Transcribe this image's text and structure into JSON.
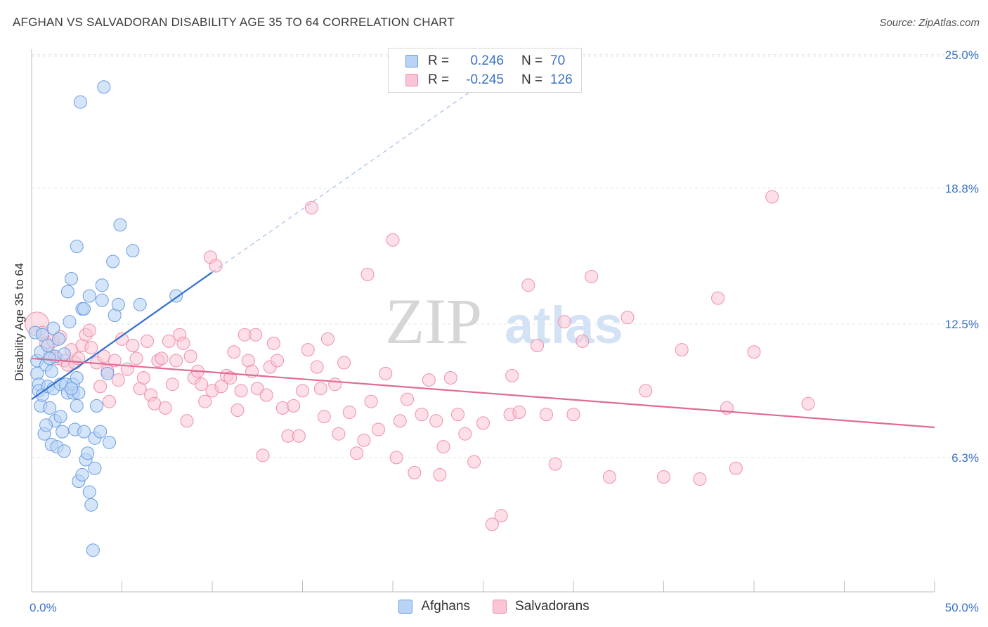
{
  "header": {
    "title": "AFGHAN VS SALVADORAN DISABILITY AGE 35 TO 64 CORRELATION CHART",
    "source": "Source: ZipAtlas.com"
  },
  "watermark": {
    "zip": "ZIP",
    "atlas": "atlas"
  },
  "legend": {
    "rows": [
      {
        "r_label": "R =",
        "r_value": "0.246",
        "n_label": "N =",
        "n_value": "70"
      },
      {
        "r_label": "R =",
        "r_value": "-0.245",
        "n_label": "N =",
        "n_value": "126"
      }
    ]
  },
  "bottom_legend": {
    "afghans": "Afghans",
    "salvadorans": "Salvadorans"
  },
  "colors": {
    "afghans_fill": "#b9d3f5",
    "afghans_stroke": "#6b9de0",
    "afghans_line": "#2f6fd0",
    "salvadorans_fill": "#f9c4d4",
    "salvadorans_stroke": "#ee8fae",
    "salvadorans_line": "#e06a96",
    "tick_label": "#3a72c8",
    "grid": "#e4e4e4"
  },
  "chart_data": {
    "type": "scatter",
    "title": "AFGHAN VS SALVADORAN DISABILITY AGE 35 TO 64 CORRELATION CHART",
    "xlabel": "",
    "ylabel": "Disability Age 35 to 64",
    "xlim": [
      0,
      50
    ],
    "ylim": [
      0,
      26
    ],
    "x_tick_labels": [
      {
        "value": 0,
        "label": "0.0%"
      },
      {
        "value": 50,
        "label": "50.0%"
      }
    ],
    "y_tick_labels": [
      {
        "value": 6.3,
        "label": "6.3%"
      },
      {
        "value": 12.5,
        "label": "12.5%"
      },
      {
        "value": 18.8,
        "label": "18.8%"
      },
      {
        "value": 25.0,
        "label": "25.0%"
      }
    ],
    "grid": "horizontal dashed",
    "series": [
      {
        "name": "Afghans",
        "r": 0.246,
        "n": 70,
        "trend": {
          "x0": 0,
          "y0": 9.0,
          "x1": 10,
          "y1": 14.9,
          "dashed_to_x": 25,
          "dashed_to_y": 23.7
        },
        "points": [
          [
            0.2,
            12.1
          ],
          [
            0.3,
            10.8
          ],
          [
            0.3,
            10.2
          ],
          [
            0.4,
            9.7
          ],
          [
            0.4,
            9.4
          ],
          [
            0.5,
            11.2
          ],
          [
            0.5,
            8.7
          ],
          [
            0.6,
            12.0
          ],
          [
            0.6,
            9.2
          ],
          [
            0.7,
            7.4
          ],
          [
            0.8,
            10.6
          ],
          [
            0.9,
            11.5
          ],
          [
            0.9,
            9.6
          ],
          [
            1.0,
            8.6
          ],
          [
            1.1,
            6.9
          ],
          [
            1.1,
            10.3
          ],
          [
            1.2,
            12.3
          ],
          [
            1.2,
            9.5
          ],
          [
            1.3,
            11.0
          ],
          [
            1.3,
            8.0
          ],
          [
            1.4,
            6.8
          ],
          [
            1.5,
            11.8
          ],
          [
            1.6,
            9.7
          ],
          [
            1.6,
            8.2
          ],
          [
            1.7,
            7.5
          ],
          [
            1.8,
            11.1
          ],
          [
            1.8,
            6.6
          ],
          [
            1.9,
            9.7
          ],
          [
            2.0,
            9.3
          ],
          [
            2.0,
            14.0
          ],
          [
            2.1,
            12.6
          ],
          [
            2.2,
            14.6
          ],
          [
            2.3,
            9.3
          ],
          [
            2.3,
            9.7
          ],
          [
            2.4,
            7.6
          ],
          [
            2.5,
            10.0
          ],
          [
            2.5,
            8.7
          ],
          [
            2.5,
            16.1
          ],
          [
            2.6,
            5.2
          ],
          [
            2.6,
            9.3
          ],
          [
            2.7,
            22.8
          ],
          [
            2.8,
            5.5
          ],
          [
            2.8,
            13.2
          ],
          [
            2.9,
            13.2
          ],
          [
            2.9,
            7.5
          ],
          [
            3.0,
            6.2
          ],
          [
            3.1,
            6.5
          ],
          [
            3.2,
            13.8
          ],
          [
            3.2,
            4.7
          ],
          [
            3.3,
            4.1
          ],
          [
            3.4,
            2.0
          ],
          [
            3.5,
            7.2
          ],
          [
            3.5,
            5.8
          ],
          [
            3.6,
            8.7
          ],
          [
            3.8,
            7.5
          ],
          [
            3.9,
            14.3
          ],
          [
            3.9,
            13.6
          ],
          [
            4.0,
            23.5
          ],
          [
            4.2,
            10.2
          ],
          [
            4.3,
            7.0
          ],
          [
            4.5,
            15.4
          ],
          [
            4.6,
            12.9
          ],
          [
            4.8,
            13.4
          ],
          [
            4.9,
            17.1
          ],
          [
            5.6,
            15.9
          ],
          [
            6.0,
            13.4
          ],
          [
            8.0,
            13.8
          ],
          [
            1.0,
            10.9
          ],
          [
            0.8,
            7.8
          ],
          [
            2.2,
            9.5
          ]
        ]
      },
      {
        "name": "Salvadorans",
        "r": -0.245,
        "n": 126,
        "trend": {
          "x0": 0,
          "y0": 10.9,
          "x1": 50,
          "y1": 7.7
        },
        "points": [
          [
            0.3,
            12.5
          ],
          [
            0.6,
            12.1
          ],
          [
            0.8,
            11.6
          ],
          [
            1.0,
            11.1
          ],
          [
            1.2,
            11.7
          ],
          [
            1.4,
            10.9
          ],
          [
            1.6,
            11.9
          ],
          [
            1.8,
            10.8
          ],
          [
            2.0,
            10.6
          ],
          [
            2.2,
            11.3
          ],
          [
            2.4,
            10.7
          ],
          [
            2.6,
            10.9
          ],
          [
            2.8,
            11.5
          ],
          [
            3.0,
            12.0
          ],
          [
            3.2,
            12.2
          ],
          [
            3.3,
            11.4
          ],
          [
            3.6,
            10.7
          ],
          [
            3.8,
            9.6
          ],
          [
            4.0,
            11.0
          ],
          [
            4.2,
            10.3
          ],
          [
            4.3,
            8.9
          ],
          [
            4.6,
            10.8
          ],
          [
            4.8,
            9.9
          ],
          [
            5.0,
            11.8
          ],
          [
            5.3,
            10.4
          ],
          [
            5.6,
            11.5
          ],
          [
            5.8,
            10.9
          ],
          [
            6.0,
            9.5
          ],
          [
            6.2,
            10.0
          ],
          [
            6.4,
            11.7
          ],
          [
            6.6,
            9.2
          ],
          [
            6.8,
            8.8
          ],
          [
            7.0,
            10.8
          ],
          [
            7.2,
            10.9
          ],
          [
            7.4,
            8.6
          ],
          [
            7.6,
            11.7
          ],
          [
            7.8,
            9.7
          ],
          [
            8.0,
            10.8
          ],
          [
            8.2,
            12.0
          ],
          [
            8.4,
            11.6
          ],
          [
            8.6,
            8.0
          ],
          [
            8.8,
            11.0
          ],
          [
            9.0,
            10.0
          ],
          [
            9.2,
            10.3
          ],
          [
            9.4,
            9.7
          ],
          [
            9.6,
            8.9
          ],
          [
            9.9,
            15.6
          ],
          [
            10.0,
            9.4
          ],
          [
            10.2,
            15.2
          ],
          [
            10.5,
            9.6
          ],
          [
            10.8,
            10.1
          ],
          [
            11.0,
            10.0
          ],
          [
            11.2,
            11.2
          ],
          [
            11.4,
            8.5
          ],
          [
            11.6,
            9.4
          ],
          [
            11.8,
            12.0
          ],
          [
            12.0,
            10.8
          ],
          [
            12.2,
            10.3
          ],
          [
            12.5,
            9.5
          ],
          [
            12.8,
            6.4
          ],
          [
            13.0,
            9.2
          ],
          [
            13.2,
            10.5
          ],
          [
            13.4,
            11.6
          ],
          [
            13.6,
            10.8
          ],
          [
            13.9,
            8.6
          ],
          [
            14.2,
            7.3
          ],
          [
            14.5,
            8.7
          ],
          [
            14.8,
            7.3
          ],
          [
            15.0,
            9.4
          ],
          [
            15.3,
            11.3
          ],
          [
            15.5,
            17.9
          ],
          [
            15.8,
            10.5
          ],
          [
            16.0,
            9.5
          ],
          [
            16.2,
            8.2
          ],
          [
            16.4,
            11.8
          ],
          [
            16.8,
            9.7
          ],
          [
            17.0,
            7.4
          ],
          [
            17.3,
            10.7
          ],
          [
            17.6,
            8.4
          ],
          [
            18.0,
            6.5
          ],
          [
            18.4,
            7.1
          ],
          [
            18.8,
            8.9
          ],
          [
            19.2,
            7.6
          ],
          [
            19.6,
            10.2
          ],
          [
            20.0,
            16.4
          ],
          [
            20.4,
            8.0
          ],
          [
            20.8,
            9.0
          ],
          [
            21.2,
            5.6
          ],
          [
            21.6,
            8.3
          ],
          [
            22.0,
            9.9
          ],
          [
            22.4,
            8.0
          ],
          [
            22.8,
            6.8
          ],
          [
            23.2,
            10.0
          ],
          [
            23.6,
            8.3
          ],
          [
            24.0,
            7.4
          ],
          [
            24.5,
            6.1
          ],
          [
            25.0,
            7.9
          ],
          [
            25.5,
            3.2
          ],
          [
            26.0,
            3.6
          ],
          [
            26.5,
            8.3
          ],
          [
            27.0,
            8.4
          ],
          [
            27.5,
            14.3
          ],
          [
            28.0,
            11.5
          ],
          [
            28.5,
            8.3
          ],
          [
            29.0,
            6.0
          ],
          [
            29.5,
            12.6
          ],
          [
            30.0,
            8.3
          ],
          [
            30.5,
            11.7
          ],
          [
            31.0,
            14.7
          ],
          [
            32.0,
            5.4
          ],
          [
            33.0,
            12.8
          ],
          [
            34.0,
            9.4
          ],
          [
            35.0,
            5.4
          ],
          [
            36.0,
            11.3
          ],
          [
            37.0,
            5.3
          ],
          [
            38.0,
            13.7
          ],
          [
            38.5,
            8.6
          ],
          [
            39.0,
            5.8
          ],
          [
            40.0,
            11.2
          ],
          [
            41.0,
            18.4
          ],
          [
            43.0,
            8.8
          ],
          [
            22.6,
            5.5
          ],
          [
            26.6,
            10.1
          ],
          [
            12.4,
            12.0
          ],
          [
            18.6,
            14.8
          ],
          [
            20.2,
            6.3
          ]
        ]
      }
    ]
  }
}
